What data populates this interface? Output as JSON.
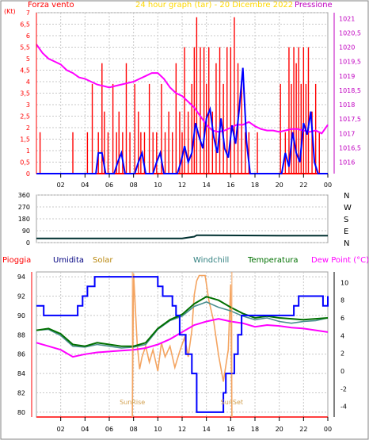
{
  "colors": {
    "wind": "#ff0000",
    "wind_avg": "#0000ff",
    "pressure": "#ff00ff",
    "humidity": "#0000ff",
    "solar": "#f4a460",
    "windchill": "#4a8f8f",
    "temperature": "#007000",
    "dewpoint": "#ff00ff",
    "winddir": "#003030",
    "grid": "#c8c8c8",
    "axis": "#000000",
    "sun_marker": "#ffffff",
    "sun_label": "#d2a050"
  },
  "header": {
    "left": "Forza vento",
    "left_unit": "(Kt)",
    "center": "24 hour graph (tar) - 20 Dicembre 2022",
    "right": "Pressione"
  },
  "chart_data": [
    {
      "type": "line",
      "title": "24 hour graph (tar) - 20 Dicembre 2022",
      "x_ticks": [
        "02",
        "04",
        "06",
        "08",
        "10",
        "12",
        "14",
        "16",
        "18",
        "20",
        "22",
        "00"
      ],
      "y_left_label": "Forza vento",
      "y_left_ticks": [
        "0",
        "0,5",
        "1",
        "1,5",
        "2",
        "2,5",
        "3",
        "3,5",
        "4",
        "4,5",
        "5",
        "5,5",
        "6",
        "6,5",
        "7"
      ],
      "y_left_range": [
        0,
        7
      ],
      "y_right_label": "Pressione",
      "y_right_ticks": [
        "1016",
        "1016,5",
        "1017",
        "1017,5",
        "1018",
        "1018,5",
        "1019",
        "1019,5",
        "1020",
        "1020,5",
        "1021"
      ],
      "y_right_range": [
        1015.6,
        1021.2
      ],
      "series": [
        {
          "name": "Forza vento",
          "axis": "left",
          "kind": "spike",
          "x": [
            0.3,
            3.0,
            4.2,
            4.6,
            5.1,
            5.4,
            5.6,
            5.9,
            6.3,
            6.6,
            6.8,
            7.1,
            7.4,
            7.7,
            8.1,
            8.4,
            8.6,
            8.9,
            9.3,
            9.6,
            9.9,
            10.3,
            10.6,
            10.9,
            11.2,
            11.5,
            11.8,
            12.0,
            12.2,
            12.5,
            12.8,
            13.0,
            13.2,
            13.5,
            13.8,
            14.0,
            14.2,
            14.5,
            14.8,
            15.1,
            15.4,
            15.7,
            16.0,
            16.3,
            16.6,
            16.9,
            17.2,
            17.5,
            18.2,
            20.1,
            20.5,
            20.8,
            21.0,
            21.2,
            21.4,
            21.6,
            21.8,
            22.0,
            22.2,
            22.4,
            22.7,
            23.0,
            23.3
          ],
          "y": [
            1.8,
            1.8,
            1.8,
            3.9,
            1.8,
            4.8,
            2.7,
            1.8,
            3.9,
            1.8,
            2.7,
            1.8,
            4.8,
            1.8,
            3.9,
            2.7,
            1.8,
            1.8,
            3.9,
            1.8,
            1.8,
            3.9,
            1.8,
            2.7,
            1.8,
            4.8,
            2.7,
            1.8,
            5.5,
            2.7,
            3.9,
            5.5,
            6.8,
            5.5,
            5.5,
            3.9,
            5.5,
            2.7,
            4.8,
            5.5,
            3.9,
            5.5,
            5.5,
            6.8,
            4.8,
            3.9,
            1.8,
            1.8,
            1.8,
            3.9,
            1.8,
            5.5,
            3.9,
            5.5,
            4.8,
            5.5,
            3.9,
            5.5,
            3.9,
            5.5,
            2.7,
            3.9,
            1.8
          ]
        },
        {
          "name": "Vento medio",
          "axis": "left",
          "x": [
            0,
            4.9,
            5.1,
            5.4,
            5.7,
            6.4,
            6.7,
            7.0,
            7.3,
            8.1,
            8.4,
            8.7,
            9.0,
            9.6,
            9.9,
            10.2,
            10.5,
            11.6,
            11.9,
            12.2,
            12.5,
            12.8,
            13.1,
            13.4,
            13.7,
            14.0,
            14.3,
            14.6,
            14.9,
            15.2,
            15.5,
            15.8,
            16.1,
            16.4,
            16.7,
            17.0,
            17.3,
            17.6,
            18.0,
            20.2,
            20.5,
            20.8,
            21.1,
            21.4,
            21.7,
            22.0,
            22.3,
            22.6,
            22.9,
            23.2,
            24
          ],
          "y": [
            0,
            0,
            0.9,
            0.9,
            0,
            0,
            0.5,
            0.9,
            0,
            0,
            0.5,
            0.9,
            0,
            0,
            0.5,
            0.9,
            0,
            0,
            0.5,
            1.2,
            0.5,
            0.9,
            2.2,
            1.6,
            1.1,
            2.4,
            2.8,
            1.6,
            0.9,
            2.4,
            1.1,
            0.7,
            2.1,
            1.3,
            2.8,
            4.6,
            1.4,
            0,
            0,
            0,
            0.9,
            0.3,
            1.8,
            0.9,
            0.5,
            2.2,
            1.7,
            2.7,
            0.5,
            0,
            0
          ]
        },
        {
          "name": "Pressione",
          "axis": "right",
          "x": [
            0,
            0.5,
            1,
            1.5,
            2,
            2.5,
            3,
            3.5,
            4,
            4.5,
            5,
            5.5,
            6,
            6.5,
            7,
            7.5,
            8,
            8.5,
            9,
            9.5,
            10,
            10.5,
            11,
            11.5,
            12,
            12.5,
            13,
            13.5,
            14,
            14.5,
            15,
            15.5,
            16,
            16.5,
            17,
            17.5,
            18,
            18.5,
            19,
            19.5,
            20,
            20.5,
            21,
            21.5,
            22,
            22.5,
            23,
            23.5,
            24
          ],
          "y": [
            1020.1,
            1019.8,
            1019.6,
            1019.5,
            1019.4,
            1019.2,
            1019.1,
            1018.95,
            1018.9,
            1018.8,
            1018.7,
            1018.65,
            1018.6,
            1018.65,
            1018.7,
            1018.75,
            1018.8,
            1018.9,
            1019.0,
            1019.1,
            1019.1,
            1018.9,
            1018.6,
            1018.4,
            1018.3,
            1018.1,
            1017.9,
            1017.6,
            1017.3,
            1017.1,
            1017.05,
            1017.1,
            1017.2,
            1017.3,
            1017.3,
            1017.4,
            1017.25,
            1017.15,
            1017.1,
            1017.1,
            1017.05,
            1017.1,
            1017.15,
            1017.15,
            1017.1,
            1017.05,
            1017.1,
            1017.0,
            1017.3
          ]
        }
      ]
    },
    {
      "type": "line",
      "title": "",
      "x_ticks": [],
      "y_left_ticks": [
        "0",
        "90",
        "180",
        "270",
        "360"
      ],
      "y_left_range": [
        0,
        360
      ],
      "y_right_ticks": [
        "N",
        "E",
        "S",
        "W",
        "N"
      ],
      "series": [
        {
          "name": "Direzione vento",
          "x": [
            0,
            8,
            12,
            13,
            13.2,
            14,
            20,
            24
          ],
          "y": [
            32,
            32,
            32,
            45,
            55,
            55,
            52,
            52
          ]
        }
      ]
    },
    {
      "type": "line",
      "title": "",
      "x_ticks": [
        "02",
        "04",
        "06",
        "08",
        "10",
        "12",
        "14",
        "16",
        "18",
        "20",
        "22",
        "00"
      ],
      "x_extra_labels": [
        "SunRise",
        "SunSet"
      ],
      "y_left_ticks": [
        "80",
        "82",
        "84",
        "86",
        "88",
        "90",
        "92",
        "94"
      ],
      "y_left_range": [
        79.5,
        94.5
      ],
      "y_right_label": "Dew Point (°C)",
      "y_right_ticks": [
        "-4",
        "-2",
        "0",
        "2",
        "4",
        "6",
        "8",
        "10"
      ],
      "y_right_range": [
        -5.2,
        11.2
      ],
      "legend": [
        "Pioggia",
        "Umidita",
        "Solar",
        "Windchill",
        "Temperatura",
        "Dew Point (°C)"
      ],
      "sunrise_x": 7.9,
      "sunset_x": 16.1,
      "series": [
        {
          "name": "Umidita",
          "axis": "left",
          "step": true,
          "x": [
            0,
            0.6,
            1,
            1.8,
            3.4,
            3.8,
            4.2,
            4.8,
            5.4,
            7.0,
            8.0,
            10.0,
            10.4,
            11.2,
            11.5,
            11.8,
            12.3,
            12.8,
            13.2,
            13.7,
            14.2,
            14.8,
            15.4,
            15.6,
            16.3,
            16.6,
            16.9,
            18.2,
            19.5,
            20.5,
            21.2,
            21.6,
            22.8,
            23.6,
            24
          ],
          "y": [
            91,
            90,
            90,
            90,
            91,
            92,
            93,
            94,
            94,
            94,
            94,
            93,
            92,
            91,
            90,
            88,
            86,
            84,
            80,
            80,
            80,
            80,
            82,
            84,
            86,
            88,
            90,
            90,
            90,
            90,
            91,
            92,
            92,
            91,
            92
          ]
        },
        {
          "name": "Temperatura",
          "axis": "right",
          "x": [
            0,
            1,
            2,
            3,
            4,
            5,
            6,
            7,
            8,
            9,
            10,
            11,
            12,
            13,
            14,
            15,
            16,
            17,
            18,
            19,
            20,
            21,
            22,
            23,
            24
          ],
          "y": [
            4.6,
            4.8,
            4.2,
            3.0,
            2.8,
            3.2,
            3.0,
            2.8,
            2.8,
            3.2,
            4.8,
            5.8,
            6.4,
            7.6,
            8.4,
            8.0,
            7.2,
            6.5,
            6.0,
            6.2,
            6.0,
            5.9,
            5.8,
            5.9,
            6.0
          ]
        },
        {
          "name": "Windchill",
          "axis": "right",
          "x": [
            0,
            1,
            2,
            3,
            4,
            5,
            6,
            7,
            8,
            9,
            10,
            11,
            12,
            13,
            14,
            15,
            16,
            17,
            18,
            19,
            20,
            21,
            22,
            23,
            24
          ],
          "y": [
            4.6,
            4.7,
            4.0,
            2.8,
            2.7,
            3.0,
            2.8,
            2.6,
            2.7,
            3.0,
            4.7,
            5.7,
            6.2,
            7.3,
            7.8,
            7.2,
            6.8,
            6.2,
            5.8,
            6.0,
            5.6,
            5.4,
            5.6,
            5.7,
            6.0
          ]
        },
        {
          "name": "Dew Point (°C)",
          "axis": "right",
          "x": [
            0,
            1,
            2,
            3,
            4,
            5,
            6,
            7,
            8,
            9,
            10,
            11,
            12,
            13,
            14,
            15,
            16,
            17,
            18,
            19,
            20,
            21,
            22,
            23,
            24
          ],
          "y": [
            3.2,
            2.8,
            2.4,
            1.6,
            1.9,
            2.1,
            2.2,
            2.3,
            2.4,
            2.6,
            3.0,
            3.6,
            4.4,
            5.2,
            5.6,
            5.9,
            5.6,
            5.4,
            5.0,
            5.2,
            5.1,
            4.9,
            4.8,
            4.6,
            4.4
          ]
        },
        {
          "name": "Solar",
          "axis": "right",
          "x": [
            7.9,
            8.0,
            8.3,
            8.5,
            8.7,
            9.0,
            9.3,
            9.6,
            10.0,
            10.3,
            10.6,
            11.0,
            11.4,
            11.8,
            12.2,
            12.5,
            12.8,
            13.0,
            13.2,
            13.4,
            13.6,
            13.9,
            14.2,
            14.6,
            15.0,
            15.4,
            15.8,
            16.0,
            16.1
          ],
          "y": [
            -5.2,
            11.0,
            3.0,
            0.2,
            1.6,
            2.8,
            1.0,
            2.4,
            0.0,
            3.2,
            1.6,
            2.8,
            0.4,
            2.2,
            3.8,
            1.6,
            4.6,
            8.6,
            10.2,
            10.8,
            10.8,
            10.8,
            8.0,
            5.6,
            1.8,
            -1.2,
            2.4,
            9.8,
            -5.2
          ]
        }
      ]
    }
  ]
}
